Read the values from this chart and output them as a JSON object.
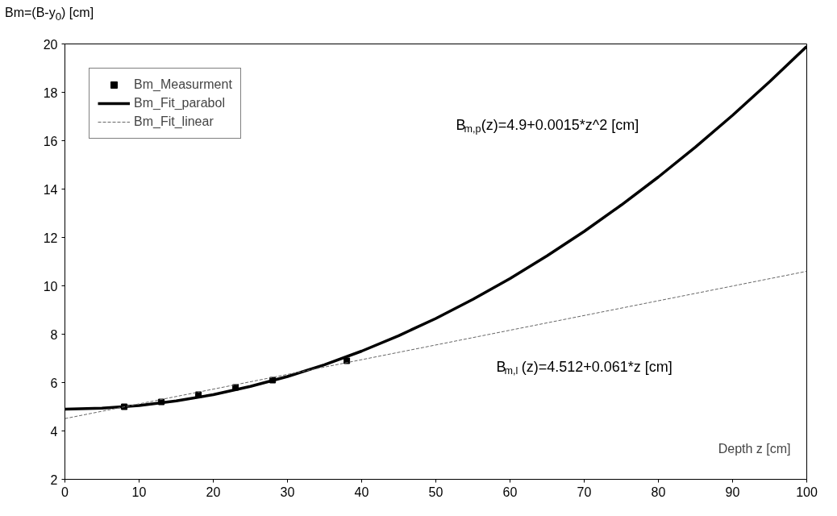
{
  "chart_data": {
    "type": "line",
    "xlabel": "Depth z [cm]",
    "ylabel": "Bm=(B-y$_{0}$) [cm]",
    "xlim": [
      0,
      100
    ],
    "ylim": [
      2,
      20
    ],
    "xticks": [
      0,
      10,
      20,
      30,
      40,
      50,
      60,
      70,
      80,
      90,
      100
    ],
    "yticks": [
      2,
      4,
      6,
      8,
      10,
      12,
      14,
      16,
      18,
      20
    ],
    "grid": false,
    "legend": "top left",
    "series": [
      {
        "name": "Bm_Measurment",
        "type": "scatter",
        "marker": "square",
        "color": "#000000",
        "x": [
          8,
          13,
          18,
          23,
          28,
          38
        ],
        "values": [
          5.0,
          5.2,
          5.5,
          5.8,
          6.1,
          6.9
        ]
      },
      {
        "name": "Bm_Fit_parabol",
        "line_style": "solid",
        "color": "#000000",
        "x": [
          0,
          5,
          10,
          15,
          20,
          25,
          30,
          35,
          40,
          45,
          50,
          55,
          60,
          65,
          70,
          75,
          80,
          85,
          90,
          95,
          100
        ],
        "values": [
          4.9,
          4.94,
          5.05,
          5.24,
          5.5,
          5.84,
          6.25,
          6.74,
          7.3,
          7.94,
          8.65,
          9.44,
          10.3,
          11.24,
          12.25,
          13.34,
          14.5,
          15.74,
          17.05,
          18.44,
          19.9
        ]
      },
      {
        "name": "Bm_Fit_linear",
        "line_style": "dashed",
        "color": "#666666",
        "x": [
          0,
          100
        ],
        "values": [
          4.51,
          10.6
        ]
      }
    ],
    "annotations": [
      "B$_{m,p}$(z)=4.9+0.0015*z^2 [cm]",
      "B$_{m,l}$(z)=4.512+0.061*z [cm]"
    ]
  }
}
